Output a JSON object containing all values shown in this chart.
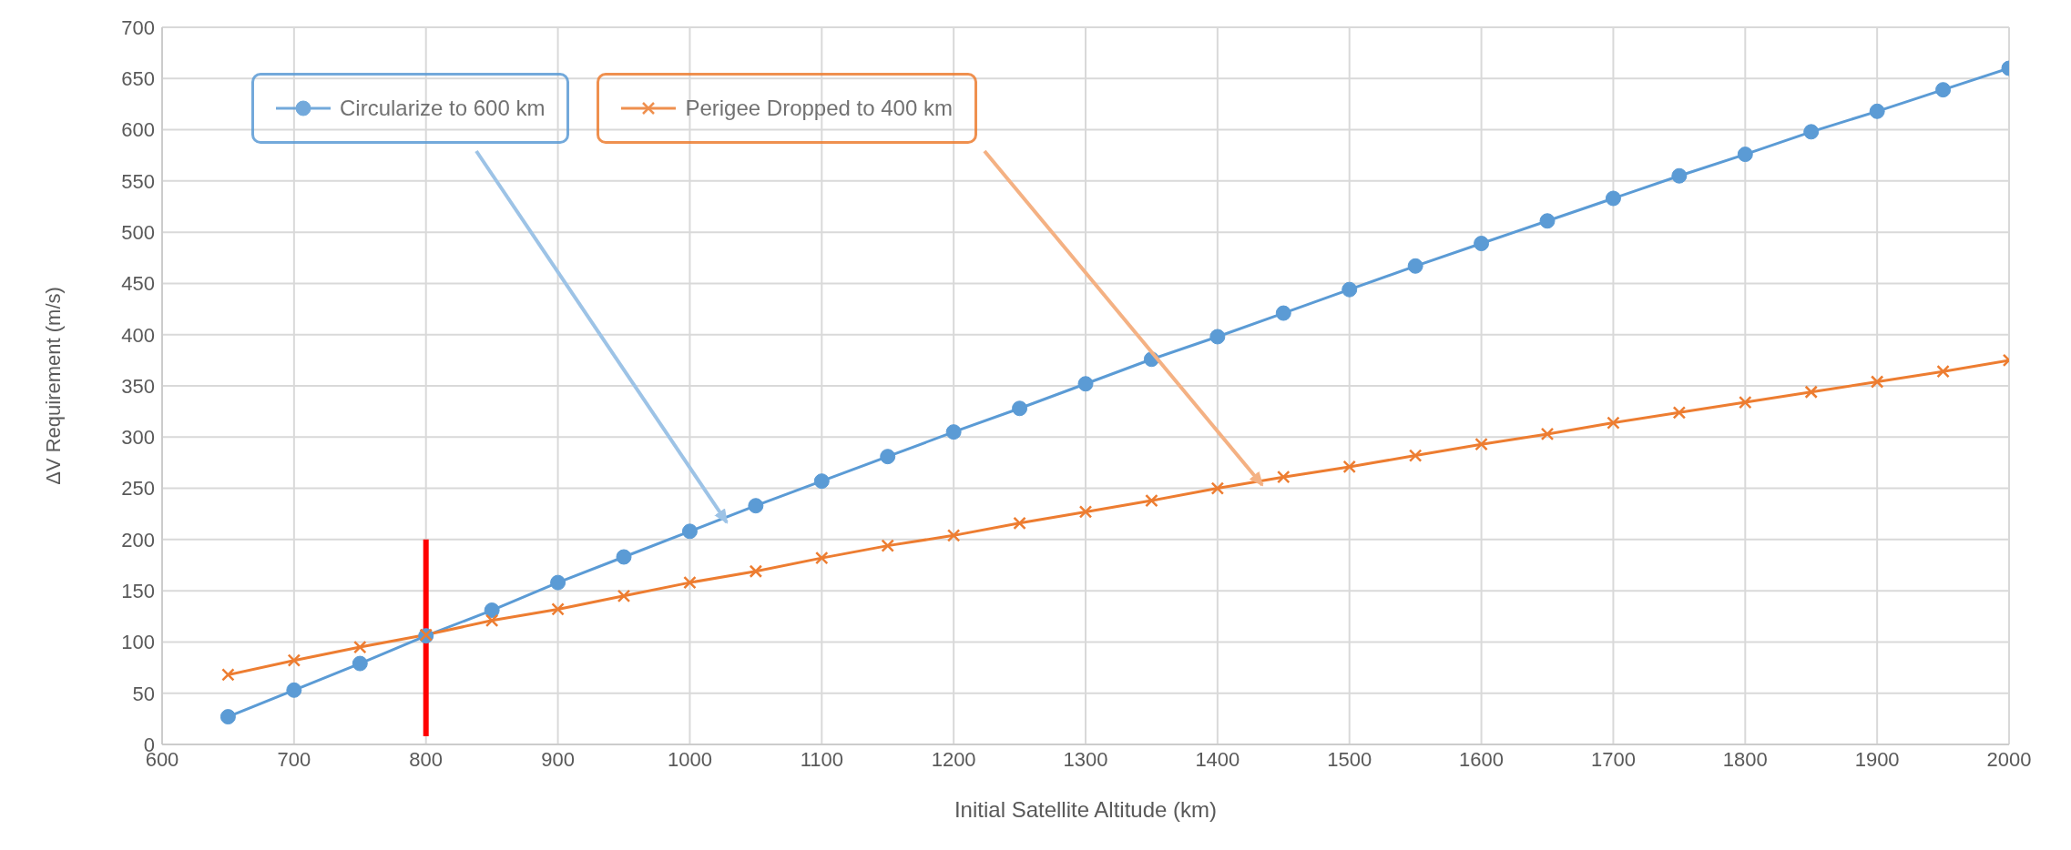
{
  "chart_data": {
    "type": "line",
    "xlabel": "Initial Satellite Altitude (km)",
    "ylabel": "ΔV Requirement (m/s)",
    "x": [
      650,
      700,
      750,
      800,
      850,
      900,
      950,
      1000,
      1050,
      1100,
      1150,
      1200,
      1250,
      1300,
      1350,
      1400,
      1450,
      1500,
      1550,
      1600,
      1650,
      1700,
      1750,
      1800,
      1850,
      1900,
      1950,
      2000
    ],
    "series": [
      {
        "name": "Circularize to 600 km",
        "color": "#5b9bd5",
        "marker": "circle",
        "values": [
          27,
          53,
          79,
          106,
          131,
          158,
          183,
          208,
          233,
          257,
          281,
          305,
          328,
          352,
          376,
          398,
          421,
          444,
          467,
          489,
          511,
          533,
          555,
          576,
          598,
          618,
          639,
          660
        ]
      },
      {
        "name": "Perigee Dropped to 400 km",
        "color": "#ed7d31",
        "marker": "cross",
        "values": [
          68,
          82,
          95,
          107,
          121,
          132,
          145,
          158,
          169,
          182,
          194,
          204,
          216,
          227,
          238,
          250,
          261,
          271,
          282,
          293,
          303,
          314,
          324,
          334,
          344,
          354,
          364,
          375
        ]
      },
      {
        "color": "#ff0000",
        "marker": "none",
        "x": [
          800,
          800
        ],
        "values": [
          8,
          200
        ]
      }
    ],
    "xlim": [
      600,
      2000
    ],
    "xticks": [
      600,
      700,
      800,
      900,
      1000,
      1100,
      1200,
      1300,
      1400,
      1500,
      1600,
      1700,
      1800,
      1900,
      2000
    ],
    "ylim": [
      0,
      700
    ],
    "yticks": [
      0,
      50,
      100,
      150,
      200,
      250,
      300,
      350,
      400,
      450,
      500,
      550,
      600,
      650,
      700
    ],
    "grid": true,
    "legend": "top left",
    "line_style": "solid"
  }
}
